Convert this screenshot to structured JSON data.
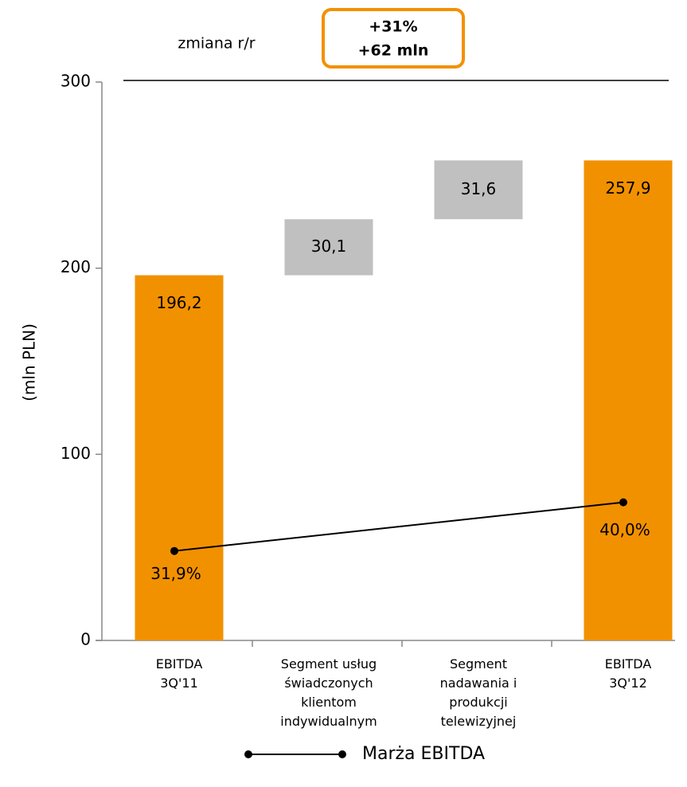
{
  "chart_data": {
    "type": "waterfall",
    "annotation": "zmiana r/r",
    "highlight": [
      "+31%",
      "+62 mln"
    ],
    "ylabel": "(mln PLN)",
    "categories": [
      [
        "EBITDA",
        "3Q'11"
      ],
      [
        "Segment usług",
        "świadczonych",
        "klientom",
        "indywidualnym"
      ],
      [
        "Segment",
        "nadawania i",
        "produkcji",
        "telewizyjnej"
      ],
      [
        "EBITDA",
        "3Q'12"
      ]
    ],
    "values": [
      196.2,
      30.1,
      31.6,
      257.9
    ],
    "value_labels": [
      "196,2",
      "30,1",
      "31,6",
      "257,9"
    ],
    "totals": [
      true,
      false,
      false,
      true
    ],
    "total_color": "#f29100",
    "step_color": "#c0c0c0",
    "ylim": [
      0,
      300
    ],
    "yticks": [
      0,
      100,
      200,
      300
    ],
    "y2lim": [
      17,
      110
    ],
    "series": [
      {
        "name": "Marża EBITDA",
        "color": "#000000",
        "axis": "y2",
        "values": [
          31.9,
          null,
          null,
          40.0
        ],
        "value_labels": [
          "31,9%",
          null,
          null,
          "40,0%"
        ]
      }
    ],
    "highlight_color": "#f29100"
  }
}
